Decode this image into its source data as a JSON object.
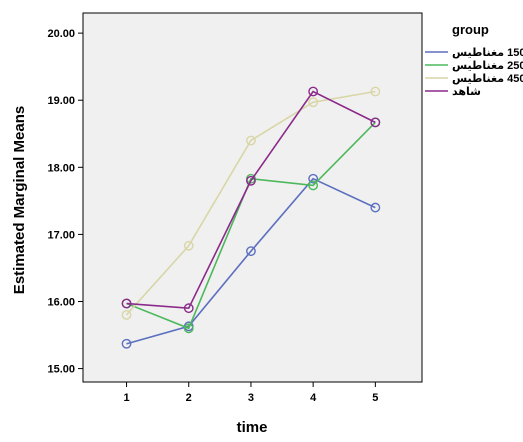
{
  "chart_data": {
    "type": "line",
    "xlabel": "time",
    "ylabel": "Estimated Marginal Means",
    "x": [
      1,
      2,
      3,
      4,
      5
    ],
    "x_ticks": [
      "1",
      "2",
      "3",
      "4",
      "5"
    ],
    "xlim": [
      0.3,
      5.75
    ],
    "ylim": [
      14.8,
      20.3
    ],
    "y_ticks": [
      "15.00",
      "16.00",
      "17.00",
      "18.00",
      "19.00",
      "20.00"
    ],
    "y_tick_values": [
      15,
      16,
      17,
      18,
      19,
      20
    ],
    "grid": false,
    "legend": {
      "title": "group",
      "position": "right"
    },
    "series": [
      {
        "name": "150 مغناطيس",
        "color": "#5b6fbf",
        "values": [
          15.37,
          15.63,
          16.75,
          17.83,
          17.4
        ]
      },
      {
        "name": "250 مغناطيس",
        "color": "#4cb85b",
        "values": [
          15.97,
          15.6,
          17.83,
          17.73,
          18.67
        ]
      },
      {
        "name": "450 مغناطيس",
        "color": "#d9d6a6",
        "values": [
          15.8,
          16.83,
          18.4,
          18.97,
          19.13
        ]
      },
      {
        "name": "شاهد",
        "color": "#8b2a8b",
        "values": [
          15.97,
          15.9,
          17.8,
          19.13,
          18.67
        ]
      }
    ],
    "plot_background": "#f0f0f0",
    "marker": "open-circle"
  }
}
